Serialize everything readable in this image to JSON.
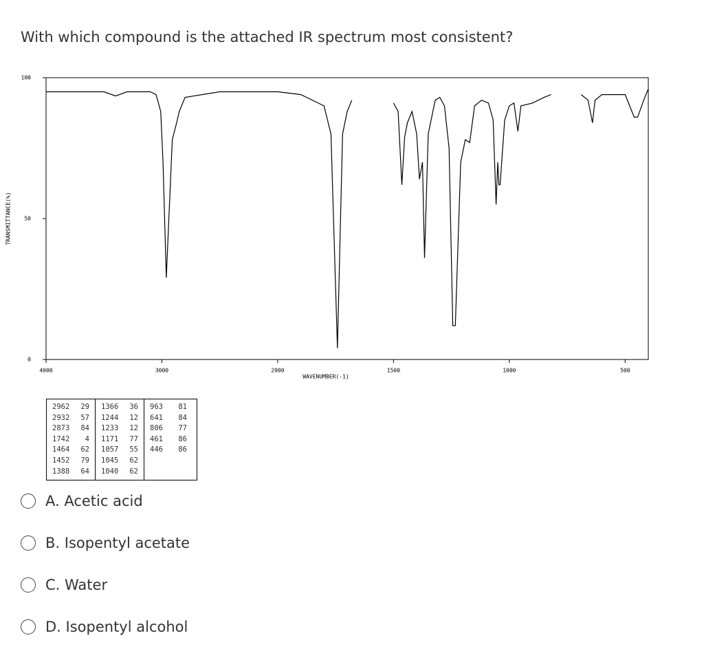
{
  "question": "With which compound is the attached IR spectrum most consistent?",
  "chart_data": {
    "type": "line",
    "x_label": "WAVENUMBER(-1)",
    "y_label": "TRANSMITTANCE(%)",
    "xlim": [
      4000,
      400
    ],
    "xbreak": 2000,
    "ylim": [
      0,
      100
    ],
    "xticks": [
      4000,
      3000,
      2000,
      1500,
      1000,
      500
    ],
    "yticks": [
      0,
      50,
      100
    ],
    "color": "#000000",
    "x": [
      4000,
      3700,
      3500,
      3400,
      3300,
      3100,
      3050,
      3010,
      2990,
      2962,
      2940,
      2932,
      2910,
      2873,
      2850,
      2800,
      2500,
      2200,
      2000,
      1900,
      1800,
      1770,
      1742,
      1720,
      1700,
      1680,
      1600,
      1500,
      1480,
      1464,
      1452,
      1440,
      1420,
      1400,
      1388,
      1375,
      1366,
      1350,
      1320,
      1300,
      1280,
      1260,
      1244,
      1233,
      1210,
      1190,
      1171,
      1150,
      1120,
      1090,
      1070,
      1057,
      1050,
      1045,
      1040,
      1020,
      1000,
      980,
      963,
      950,
      900,
      850,
      820,
      760,
      690,
      660,
      641,
      630,
      600,
      560,
      500,
      461,
      446,
      420,
      400
    ],
    "values": [
      95,
      95,
      95,
      93.5,
      95,
      95,
      94,
      88,
      70,
      29,
      50,
      57,
      78,
      84,
      88,
      93,
      95,
      95,
      95,
      94,
      90,
      80,
      4,
      80,
      88,
      92,
      null,
      91,
      88,
      62,
      79,
      84,
      88,
      80,
      64,
      70,
      36,
      80,
      92,
      93,
      90,
      75,
      12,
      12,
      70,
      78,
      77,
      90,
      92,
      91,
      85,
      55,
      70,
      62,
      62,
      85,
      90,
      91,
      81,
      90,
      91,
      93,
      94,
      null,
      94,
      92,
      84,
      92,
      94,
      94,
      94,
      86,
      86,
      92,
      96
    ]
  },
  "peak_table": [
    [
      [
        "2962",
        "29"
      ],
      [
        "2932",
        "57"
      ],
      [
        "2873",
        "84"
      ],
      [
        "1742",
        "4"
      ],
      [
        "1464",
        "62"
      ],
      [
        "1452",
        "79"
      ],
      [
        "1388",
        "64"
      ]
    ],
    [
      [
        "1366",
        "36"
      ],
      [
        "1244",
        "12"
      ],
      [
        "1233",
        "12"
      ],
      [
        "1171",
        "77"
      ],
      [
        "1057",
        "55"
      ],
      [
        "1045",
        "62"
      ],
      [
        "1040",
        "62"
      ]
    ],
    [
      [
        "963",
        "81"
      ],
      [
        "641",
        "84"
      ],
      [
        "806",
        "77"
      ],
      [
        "461",
        "86"
      ],
      [
        "446",
        "86"
      ]
    ]
  ],
  "options": [
    "A. Acetic acid",
    "B. Isopentyl acetate",
    "C. Water",
    "D. Isopentyl alcohol"
  ]
}
